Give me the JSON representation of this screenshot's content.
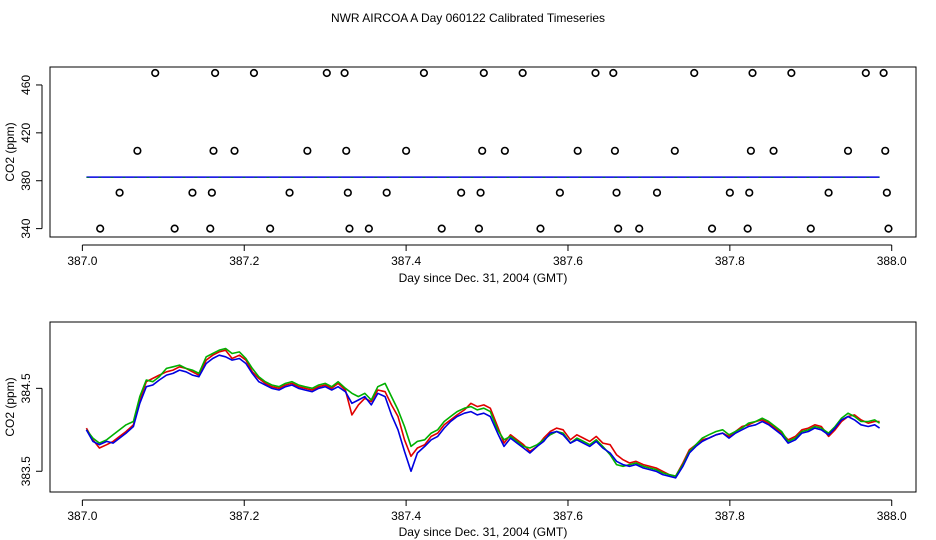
{
  "title": "NWR AIRCOA A  Day 060122  Calibrated Timeseries",
  "colors": {
    "series_red": "#e00000",
    "series_green": "#00b000",
    "series_blue": "#0000e0",
    "axes": "#000000"
  },
  "chart_data": [
    {
      "type": "scatter",
      "xlabel": "Day since Dec. 31, 2004 (GMT)",
      "ylabel": "CO2 (ppm)",
      "xlim": [
        386.96,
        388.03
      ],
      "ylim": [
        333,
        475
      ],
      "xticks": [
        387.0,
        387.2,
        387.4,
        387.6,
        387.8,
        388.0
      ],
      "xtick_labels": [
        "387.0",
        "387.2",
        "387.4",
        "387.6",
        "387.8",
        "388.0"
      ],
      "yticks": [
        340,
        380,
        420,
        460
      ],
      "ytick_labels": [
        "340",
        "380",
        "420",
        "460"
      ],
      "grid": false,
      "calibration_points": [
        {
          "x": 387.022,
          "y": 340
        },
        {
          "x": 387.046,
          "y": 370
        },
        {
          "x": 387.068,
          "y": 405
        },
        {
          "x": 387.09,
          "y": 470
        },
        {
          "x": 387.114,
          "y": 340
        },
        {
          "x": 387.136,
          "y": 370
        },
        {
          "x": 387.158,
          "y": 340
        },
        {
          "x": 387.16,
          "y": 370
        },
        {
          "x": 387.162,
          "y": 405
        },
        {
          "x": 387.164,
          "y": 470
        },
        {
          "x": 387.188,
          "y": 405
        },
        {
          "x": 387.212,
          "y": 470
        },
        {
          "x": 387.232,
          "y": 340
        },
        {
          "x": 387.256,
          "y": 370
        },
        {
          "x": 387.278,
          "y": 405
        },
        {
          "x": 387.302,
          "y": 470
        },
        {
          "x": 387.324,
          "y": 470
        },
        {
          "x": 387.326,
          "y": 405
        },
        {
          "x": 387.328,
          "y": 370
        },
        {
          "x": 387.33,
          "y": 340
        },
        {
          "x": 387.354,
          "y": 340
        },
        {
          "x": 387.376,
          "y": 370
        },
        {
          "x": 387.4,
          "y": 405
        },
        {
          "x": 387.422,
          "y": 470
        },
        {
          "x": 387.444,
          "y": 340
        },
        {
          "x": 387.468,
          "y": 370
        },
        {
          "x": 387.49,
          "y": 340
        },
        {
          "x": 387.492,
          "y": 370
        },
        {
          "x": 387.494,
          "y": 405
        },
        {
          "x": 387.496,
          "y": 470
        },
        {
          "x": 387.522,
          "y": 405
        },
        {
          "x": 387.544,
          "y": 470
        },
        {
          "x": 387.566,
          "y": 340
        },
        {
          "x": 387.59,
          "y": 370
        },
        {
          "x": 387.612,
          "y": 405
        },
        {
          "x": 387.634,
          "y": 470
        },
        {
          "x": 387.656,
          "y": 470
        },
        {
          "x": 387.658,
          "y": 405
        },
        {
          "x": 387.66,
          "y": 370
        },
        {
          "x": 387.662,
          "y": 340
        },
        {
          "x": 387.688,
          "y": 340
        },
        {
          "x": 387.71,
          "y": 370
        },
        {
          "x": 387.732,
          "y": 405
        },
        {
          "x": 387.756,
          "y": 470
        },
        {
          "x": 387.778,
          "y": 340
        },
        {
          "x": 387.8,
          "y": 370
        },
        {
          "x": 387.822,
          "y": 340
        },
        {
          "x": 387.824,
          "y": 370
        },
        {
          "x": 387.826,
          "y": 405
        },
        {
          "x": 387.828,
          "y": 470
        },
        {
          "x": 387.854,
          "y": 405
        },
        {
          "x": 387.876,
          "y": 470
        },
        {
          "x": 387.9,
          "y": 340
        },
        {
          "x": 387.922,
          "y": 370
        },
        {
          "x": 387.946,
          "y": 405
        },
        {
          "x": 387.968,
          "y": 470
        },
        {
          "x": 387.99,
          "y": 470
        },
        {
          "x": 387.992,
          "y": 405
        },
        {
          "x": 387.994,
          "y": 370
        },
        {
          "x": 387.996,
          "y": 340
        }
      ],
      "ambient_trace": {
        "x_start": 387.005,
        "x_end": 387.985,
        "y_start": 383.0,
        "y_end": 383.0
      }
    },
    {
      "type": "line",
      "xlabel": "Day since Dec. 31, 2004 (GMT)",
      "ylabel": "CO2 (ppm)",
      "xlim": [
        386.96,
        388.03
      ],
      "ylim": [
        383.25,
        385.3
      ],
      "xticks": [
        387.0,
        387.2,
        387.4,
        387.6,
        387.8,
        388.0
      ],
      "xtick_labels": [
        "387.0",
        "387.2",
        "387.4",
        "387.6",
        "387.8",
        "388.0"
      ],
      "yticks": [
        383.5,
        384.5
      ],
      "ytick_labels": [
        "383.5",
        "384.5"
      ],
      "grid": false,
      "x": [
        387.005,
        387.013,
        387.021,
        387.03,
        387.038,
        387.046,
        387.054,
        387.063,
        387.071,
        387.079,
        387.087,
        387.095,
        387.104,
        387.112,
        387.12,
        387.128,
        387.136,
        387.144,
        387.153,
        387.161,
        387.169,
        387.177,
        387.185,
        387.194,
        387.202,
        387.21,
        387.218,
        387.226,
        387.234,
        387.243,
        387.251,
        387.259,
        387.267,
        387.275,
        387.284,
        387.292,
        387.3,
        387.308,
        387.316,
        387.325,
        387.333,
        387.341,
        387.349,
        387.357,
        387.365,
        387.374,
        387.382,
        387.39,
        387.398,
        387.406,
        387.414,
        387.423,
        387.431,
        387.439,
        387.447,
        387.455,
        387.463,
        387.472,
        387.48,
        387.488,
        387.496,
        387.504,
        387.513,
        387.521,
        387.529,
        387.537,
        387.545,
        387.553,
        387.562,
        387.57,
        387.578,
        387.586,
        387.594,
        387.603,
        387.611,
        387.619,
        387.627,
        387.635,
        387.643,
        387.652,
        387.66,
        387.668,
        387.676,
        387.684,
        387.693,
        387.701,
        387.709,
        387.717,
        387.725,
        387.733,
        387.742,
        387.75,
        387.758,
        387.766,
        387.774,
        387.783,
        387.791,
        387.799,
        387.807,
        387.815,
        387.823,
        387.832,
        387.84,
        387.848,
        387.856,
        387.864,
        387.872,
        387.881,
        387.889,
        387.897,
        387.905,
        387.913,
        387.922,
        387.93,
        387.938,
        387.946,
        387.954,
        387.962,
        387.971,
        387.979,
        387.985
      ],
      "series": [
        {
          "color": "#e00000",
          "values": [
            384.02,
            383.88,
            383.78,
            383.82,
            383.86,
            383.92,
            383.98,
            384.06,
            384.36,
            384.58,
            384.62,
            384.66,
            384.7,
            384.72,
            384.76,
            384.74,
            384.7,
            384.66,
            384.84,
            384.9,
            384.94,
            384.96,
            384.86,
            384.9,
            384.84,
            384.7,
            384.62,
            384.56,
            384.52,
            384.5,
            384.54,
            384.56,
            384.52,
            384.5,
            384.48,
            384.52,
            384.54,
            384.5,
            384.56,
            384.48,
            384.18,
            384.3,
            384.38,
            384.34,
            384.48,
            384.46,
            384.3,
            384.16,
            383.88,
            383.68,
            383.78,
            383.82,
            383.92,
            383.96,
            384.06,
            384.12,
            384.18,
            384.24,
            384.32,
            384.28,
            384.3,
            384.26,
            384.04,
            383.84,
            383.94,
            383.88,
            383.82,
            383.74,
            383.8,
            383.9,
            383.98,
            384.02,
            384.0,
            383.88,
            383.94,
            383.9,
            383.86,
            383.92,
            383.84,
            383.82,
            383.7,
            383.64,
            383.6,
            383.62,
            383.58,
            383.56,
            383.54,
            383.5,
            383.46,
            383.44,
            383.6,
            383.76,
            383.82,
            383.88,
            383.9,
            383.94,
            383.96,
            383.92,
            383.98,
            384.04,
            384.06,
            384.1,
            384.12,
            384.08,
            384.02,
            383.96,
            383.88,
            383.92,
            384.0,
            384.02,
            384.06,
            384.04,
            383.92,
            384.0,
            384.1,
            384.16,
            384.18,
            384.12,
            384.08,
            384.1,
            384.1
          ]
        },
        {
          "color": "#00b000",
          "values": [
            384.0,
            383.9,
            383.84,
            383.88,
            383.94,
            384.0,
            384.06,
            384.1,
            384.4,
            384.6,
            384.58,
            384.64,
            384.74,
            384.76,
            384.78,
            384.74,
            384.72,
            384.68,
            384.88,
            384.92,
            384.96,
            384.98,
            384.92,
            384.94,
            384.86,
            384.74,
            384.64,
            384.58,
            384.54,
            384.52,
            384.56,
            384.58,
            384.54,
            384.52,
            384.5,
            384.54,
            384.56,
            384.52,
            384.58,
            384.5,
            384.44,
            384.4,
            384.44,
            384.36,
            384.52,
            384.56,
            384.4,
            384.24,
            384.04,
            383.8,
            383.86,
            383.88,
            383.96,
            384.0,
            384.1,
            384.16,
            384.22,
            384.26,
            384.28,
            384.24,
            384.26,
            384.22,
            384.0,
            383.88,
            383.92,
            383.86,
            383.8,
            383.78,
            383.82,
            383.88,
            383.94,
            383.98,
            383.96,
            383.84,
            383.9,
            383.86,
            383.82,
            383.88,
            383.8,
            383.7,
            383.58,
            383.56,
            383.58,
            383.6,
            383.56,
            383.54,
            383.52,
            383.48,
            383.46,
            383.44,
            383.58,
            383.74,
            383.82,
            383.9,
            383.94,
            383.98,
            384.0,
            383.94,
            383.98,
            384.02,
            384.08,
            384.1,
            384.14,
            384.1,
            384.04,
            383.98,
            383.86,
            383.9,
            383.98,
            384.0,
            384.04,
            384.02,
            383.96,
            384.04,
            384.14,
            384.2,
            384.16,
            384.1,
            384.1,
            384.12,
            384.08
          ]
        },
        {
          "color": "#0000e0",
          "values": [
            384.0,
            383.86,
            383.82,
            383.86,
            383.84,
            383.9,
            383.96,
            384.04,
            384.32,
            384.52,
            384.54,
            384.6,
            384.66,
            384.68,
            384.72,
            384.7,
            384.66,
            384.64,
            384.8,
            384.86,
            384.9,
            384.88,
            384.84,
            384.86,
            384.8,
            384.68,
            384.58,
            384.54,
            384.5,
            384.48,
            384.52,
            384.54,
            384.5,
            384.48,
            384.46,
            384.5,
            384.52,
            384.48,
            384.52,
            384.46,
            384.32,
            384.36,
            384.4,
            384.3,
            384.44,
            384.4,
            384.18,
            384.0,
            383.74,
            383.5,
            383.72,
            383.8,
            383.88,
            383.92,
            384.02,
            384.1,
            384.16,
            384.2,
            384.22,
            384.18,
            384.2,
            384.16,
            383.96,
            383.8,
            383.9,
            383.84,
            383.78,
            383.72,
            383.8,
            383.86,
            383.96,
            383.98,
            383.94,
            383.84,
            383.88,
            383.84,
            383.8,
            383.86,
            383.78,
            383.72,
            383.62,
            383.58,
            383.56,
            383.58,
            383.54,
            383.52,
            383.5,
            383.46,
            383.44,
            383.42,
            383.56,
            383.72,
            383.8,
            383.86,
            383.9,
            383.94,
            383.96,
            383.9,
            383.96,
            384.0,
            384.04,
            384.06,
            384.1,
            384.06,
            384.0,
            383.94,
            383.84,
            383.88,
            383.96,
            383.98,
            384.02,
            384.0,
            383.94,
            384.02,
            384.12,
            384.16,
            384.12,
            384.06,
            384.04,
            384.06,
            384.02
          ]
        }
      ]
    }
  ]
}
